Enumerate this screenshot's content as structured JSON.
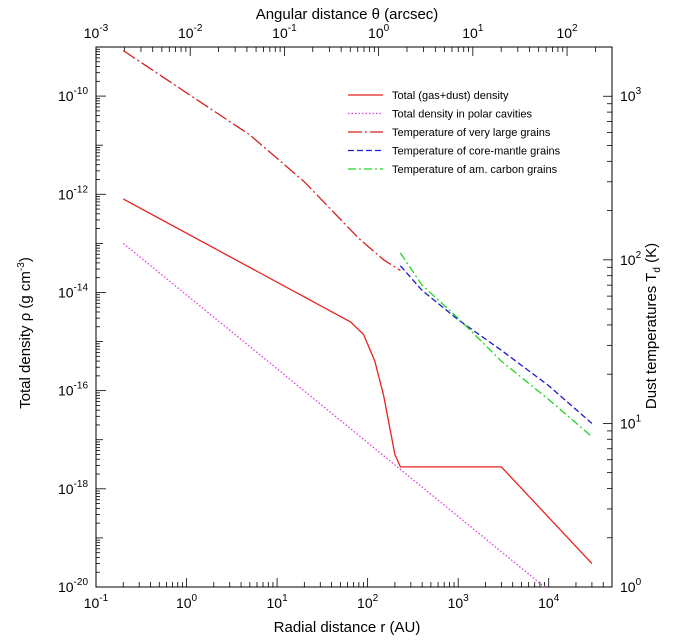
{
  "chart_data": {
    "type": "line",
    "title": "",
    "xlabel": "Radial distance r (AU)",
    "ylabel_left": "Total density  ρ (g cm",
    "ylabel_left_sup": "-3",
    "ylabel_left_end": ")",
    "ylabel_right": "Dust temperatures  T",
    "ylabel_right_sub": "d",
    "ylabel_right_end": " (K)",
    "top_axis_label": "Angular distance θ (arcsec)",
    "x_scale": "log",
    "xlim": [
      0.1,
      50000
    ],
    "ylim_left": [
      1e-20,
      1e-09
    ],
    "ylim_right": [
      1,
      2000
    ],
    "top_axis_lim": [
      0.001,
      300
    ],
    "grid": false,
    "legend_position": "top-right",
    "x_ticks": [
      {
        "base": "10",
        "exp": "-1",
        "value": 0.1
      },
      {
        "base": "10",
        "exp": "0",
        "value": 1
      },
      {
        "base": "10",
        "exp": "1",
        "value": 10
      },
      {
        "base": "10",
        "exp": "2",
        "value": 100
      },
      {
        "base": "10",
        "exp": "3",
        "value": 1000
      },
      {
        "base": "10",
        "exp": "4",
        "value": 10000
      }
    ],
    "y_left_ticks": [
      {
        "base": "10",
        "exp": "-10",
        "value": 1e-10
      },
      {
        "base": "10",
        "exp": "-12",
        "value": 1e-12
      },
      {
        "base": "10",
        "exp": "-14",
        "value": 1e-14
      },
      {
        "base": "10",
        "exp": "-16",
        "value": 1e-16
      },
      {
        "base": "10",
        "exp": "-18",
        "value": 1e-18
      },
      {
        "base": "10",
        "exp": "-20",
        "value": 1e-20
      }
    ],
    "y_right_ticks": [
      {
        "base": "10",
        "exp": "3",
        "value": 1000
      },
      {
        "base": "10",
        "exp": "2",
        "value": 100
      },
      {
        "base": "10",
        "exp": "1",
        "value": 10
      },
      {
        "base": "10",
        "exp": "0",
        "value": 1
      }
    ],
    "top_ticks": [
      {
        "base": "10",
        "exp": "-3",
        "value": 0.001
      },
      {
        "base": "10",
        "exp": "-2",
        "value": 0.01
      },
      {
        "base": "10",
        "exp": "-1",
        "value": 0.1
      },
      {
        "base": "10",
        "exp": "0",
        "value": 1
      },
      {
        "base": "10",
        "exp": "1",
        "value": 10
      },
      {
        "base": "10",
        "exp": "2",
        "value": 100
      }
    ],
    "series": [
      {
        "name": "Total (gas+dust) density",
        "axis": "left",
        "color": "#e8231e",
        "dash": "",
        "points": [
          [
            0.2,
            8e-13
          ],
          [
            65,
            2.5e-15
          ],
          [
            90,
            1.4e-15
          ],
          [
            120,
            4e-16
          ],
          [
            150,
            8e-17
          ],
          [
            200,
            5e-18
          ],
          [
            230,
            2.8e-18
          ],
          [
            3000,
            2.8e-18
          ],
          [
            30000,
            3e-20
          ]
        ]
      },
      {
        "name": "Total density in polar cavities",
        "axis": "left",
        "color": "#e53ce5",
        "dash": "1.5 2",
        "points": [
          [
            0.2,
            1e-13
          ],
          [
            9000,
            1e-20
          ]
        ]
      },
      {
        "name": "Temperature of very large grains",
        "axis": "right",
        "color": "#d42020",
        "dash": "14 3 2 3",
        "points": [
          [
            0.2,
            1900
          ],
          [
            1,
            1050
          ],
          [
            5,
            580
          ],
          [
            20,
            300
          ],
          [
            80,
            135
          ],
          [
            150,
            100
          ],
          [
            230,
            86
          ]
        ]
      },
      {
        "name": "Temperature of core-mantle grains",
        "axis": "right",
        "color": "#1a1acc",
        "dash": "6 3",
        "points": [
          [
            230,
            92
          ],
          [
            400,
            65
          ],
          [
            1000,
            43
          ],
          [
            3000,
            28
          ],
          [
            10000,
            17
          ],
          [
            30000,
            10
          ]
        ]
      },
      {
        "name": "Temperature of am. carbon grains",
        "axis": "right",
        "color": "#22d422",
        "dash": "8 3 2 3",
        "points": [
          [
            230,
            110
          ],
          [
            400,
            70
          ],
          [
            1000,
            44
          ],
          [
            3000,
            24
          ],
          [
            10000,
            14
          ],
          [
            30000,
            8.3
          ]
        ]
      }
    ]
  }
}
